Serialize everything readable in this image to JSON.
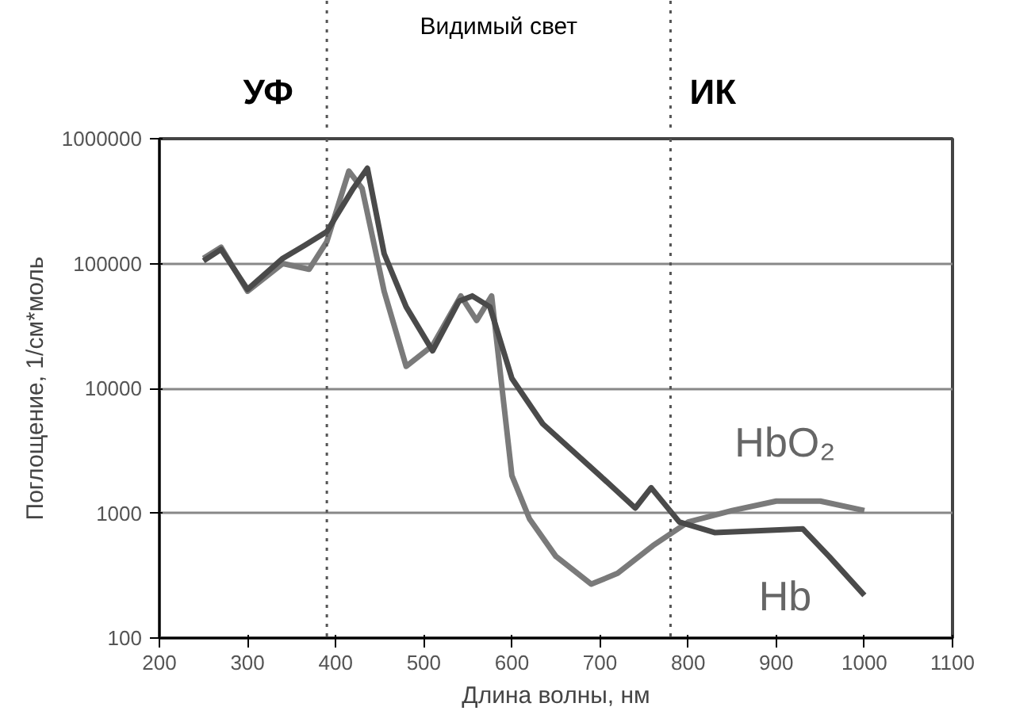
{
  "chart_data": {
    "type": "line",
    "xlabel": "Длина волны, нм",
    "ylabel": "Поглощение, 1/см*моль",
    "annotations": [
      "УФ",
      "Видимый свет",
      "ИК"
    ],
    "xlim": [
      200,
      1100
    ],
    "xticks": [
      200,
      300,
      400,
      500,
      600,
      700,
      800,
      900,
      1000,
      1100
    ],
    "ylim": [
      100,
      1000000
    ],
    "yticks": [
      100,
      1000,
      10000,
      100000,
      1000000
    ],
    "log": "y",
    "grid": "y",
    "line_style": "solid",
    "ref_lines": [
      {
        "axis": "x",
        "value": 390,
        "label": null,
        "color": "#555555",
        "line_style": "dotted"
      },
      {
        "axis": "x",
        "value": 780,
        "label": null,
        "color": "#555555",
        "line_style": "dotted"
      }
    ],
    "series": [
      {
        "name": "HbO₂",
        "color": "#7a7a7a",
        "x": [
          250,
          270,
          300,
          340,
          370,
          390,
          415,
          430,
          455,
          480,
          510,
          542,
          560,
          577,
          600,
          620,
          650,
          690,
          720,
          760,
          800,
          850,
          900,
          950,
          1000
        ],
        "values": [
          110000,
          135000,
          60000,
          100000,
          90000,
          150000,
          550000,
          400000,
          60000,
          15000,
          22000,
          55000,
          35000,
          55000,
          2000,
          900,
          450,
          270,
          330,
          550,
          850,
          1050,
          1250,
          1250,
          1050
        ]
      },
      {
        "name": "Hb",
        "color": "#4a4a4a",
        "x": [
          250,
          270,
          300,
          340,
          365,
          390,
          420,
          436,
          455,
          480,
          510,
          540,
          555,
          575,
          600,
          635,
          700,
          740,
          758,
          790,
          830,
          930,
          960,
          1000
        ],
        "values": [
          105000,
          130000,
          62000,
          110000,
          140000,
          180000,
          400000,
          580000,
          120000,
          45000,
          20000,
          50000,
          55000,
          45000,
          12000,
          5200,
          2000,
          1100,
          1600,
          850,
          700,
          750,
          450,
          220
        ]
      }
    ]
  }
}
